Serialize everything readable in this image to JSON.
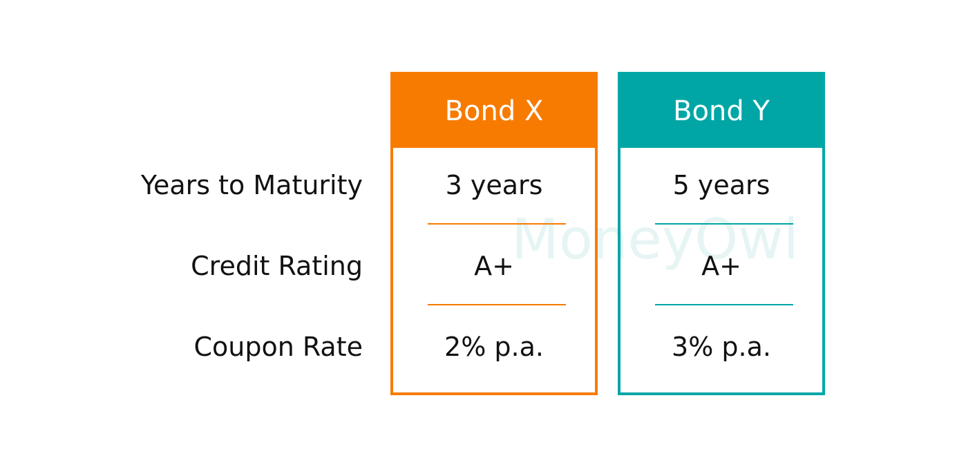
{
  "watermark": "MoneyOwl",
  "rows": [
    "Years to Maturity",
    "Credit Rating",
    "Coupon Rate"
  ],
  "columns": [
    {
      "header": "Bond X",
      "values": [
        "3 years",
        "A+",
        "2% p.a."
      ]
    },
    {
      "header": "Bond Y",
      "values": [
        "5 years",
        "A+",
        "3% p.a."
      ]
    }
  ]
}
